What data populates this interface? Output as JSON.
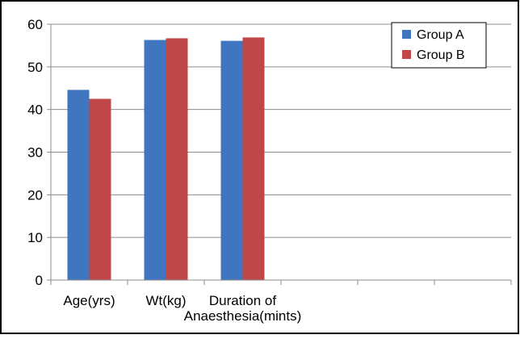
{
  "chart_data": {
    "type": "bar",
    "categories": [
      [
        "Age(yrs)"
      ],
      [
        "Wt(kg)"
      ],
      [
        "Duration of",
        "Anaesthesia(mints)"
      ],
      [
        ""
      ],
      [
        ""
      ],
      [
        ""
      ]
    ],
    "series": [
      {
        "name": "Group A",
        "color": "#3F76BF",
        "values": [
          44.6,
          56.3,
          56.1,
          null,
          null,
          null
        ]
      },
      {
        "name": "Group B",
        "color": "#BF4747",
        "values": [
          42.5,
          56.7,
          56.9,
          null,
          null,
          null
        ]
      }
    ],
    "y_ticks": [
      "0",
      "10",
      "20",
      "30",
      "40",
      "50",
      "60"
    ],
    "ylim": [
      0,
      60
    ],
    "grid": true,
    "legend_position": "top-right",
    "title": "",
    "xlabel": "",
    "ylabel": ""
  }
}
